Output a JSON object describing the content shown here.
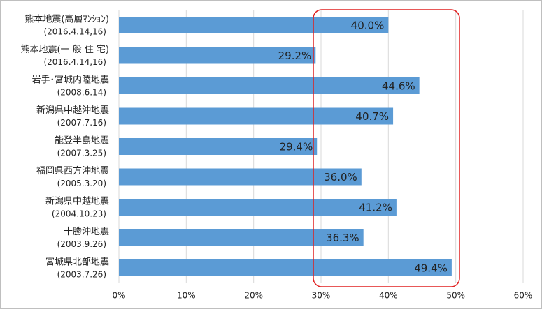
{
  "chart_data": {
    "type": "barh",
    "categories": [
      [
        "熊本地震(高層ﾏﾝｼｮﾝ)",
        "(2016.4.14,16)"
      ],
      [
        "熊本地震(一 般 住 宅)",
        "(2016.4.14,16)"
      ],
      [
        "岩手･宮城内陸地震",
        "(2008.6.14)"
      ],
      [
        "新潟県中越沖地震",
        "(2007.7.16)"
      ],
      [
        "能登半島地震",
        "(2007.3.25)"
      ],
      [
        "福岡県西方沖地震",
        "(2005.3.20)"
      ],
      [
        "新潟県中越地震",
        "(2004.10.23)"
      ],
      [
        "十勝沖地震",
        "(2003.9.26)"
      ],
      [
        "宮城県北部地震",
        "(2003.7.26)"
      ]
    ],
    "values": [
      40.0,
      29.2,
      44.6,
      40.7,
      29.4,
      36.0,
      41.2,
      36.3,
      49.4
    ],
    "value_labels": [
      "40.0%",
      "29.2%",
      "44.6%",
      "40.7%",
      "29.4%",
      "36.0%",
      "41.2%",
      "36.3%",
      "49.4%"
    ],
    "color": "#5b9bd5",
    "xlim": [
      0,
      60
    ],
    "xticks": [
      {
        "value": 0,
        "label": "0%"
      },
      {
        "value": 10,
        "label": "10%"
      },
      {
        "value": 20,
        "label": "20%"
      },
      {
        "value": 30,
        "label": "30%"
      },
      {
        "value": 40,
        "label": "40%"
      },
      {
        "value": 50,
        "label": "50%"
      },
      {
        "value": 60,
        "label": "60%"
      }
    ],
    "grid": true
  }
}
